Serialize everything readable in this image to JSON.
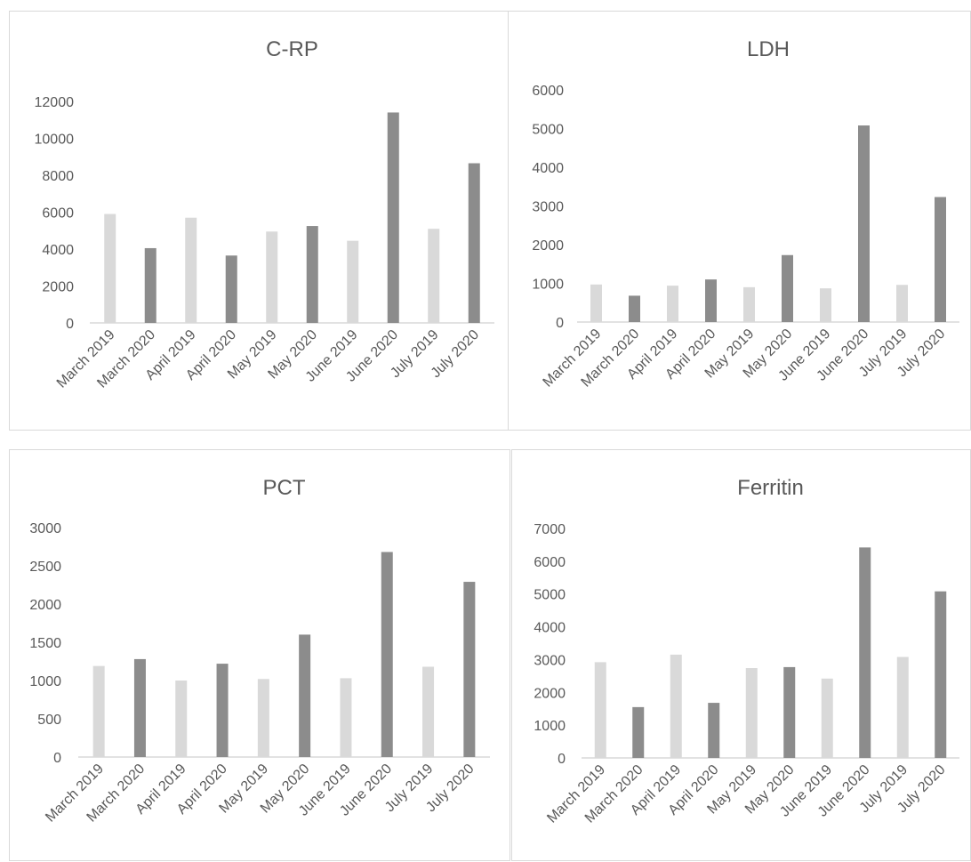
{
  "colors": {
    "y2019": "#d9d9d9",
    "y2020": "#8c8c8c",
    "axis": "#d9d9d9",
    "text": "#595959"
  },
  "chart_data": [
    {
      "type": "bar",
      "title": "C-RP",
      "categories": [
        "March 2019",
        "March 2020",
        "April 2019",
        "April 2020",
        "May 2019",
        "May 2020",
        "June 2019",
        "June 2020",
        "July 2019",
        "July 2020"
      ],
      "values": [
        5900,
        4050,
        5700,
        3650,
        4950,
        5250,
        4450,
        11400,
        5100,
        8650
      ],
      "ylim": [
        0,
        12000
      ],
      "yticks": [
        "0",
        "2000",
        "4000",
        "6000",
        "8000",
        "10000",
        "12000"
      ],
      "grid": false,
      "legend": "none"
    },
    {
      "type": "bar",
      "title": "LDH",
      "categories": [
        "March 2019",
        "March 2020",
        "April 2019",
        "April 2020",
        "May 2019",
        "May 2020",
        "June 2019",
        "June 2020",
        "July 2019",
        "July 2020"
      ],
      "values": [
        970,
        680,
        940,
        1100,
        900,
        1730,
        870,
        5080,
        960,
        3230
      ],
      "ylim": [
        0,
        6000
      ],
      "yticks": [
        "0",
        "1000",
        "2000",
        "3000",
        "4000",
        "5000",
        "6000"
      ],
      "grid": false,
      "legend": "none"
    },
    {
      "type": "bar",
      "title": "PCT",
      "categories": [
        "March 2019",
        "March 2020",
        "April 2019",
        "April 2020",
        "May 2019",
        "May 2020",
        "June 2019",
        "June 2020",
        "July 2019",
        "July 2020"
      ],
      "values": [
        1190,
        1280,
        1000,
        1220,
        1020,
        1600,
        1030,
        2680,
        1180,
        2290
      ],
      "ylim": [
        0,
        3000
      ],
      "yticks": [
        "0",
        "500",
        "1000",
        "1500",
        "2000",
        "2500",
        "3000"
      ],
      "grid": false,
      "legend": "none"
    },
    {
      "type": "bar",
      "title": "Ferritin",
      "categories": [
        "March 2019",
        "March 2020",
        "April 2019",
        "April 2020",
        "May 2019",
        "May 2020",
        "June 2019",
        "June 2020",
        "July 2019",
        "July 2020"
      ],
      "values": [
        2920,
        1550,
        3150,
        1680,
        2740,
        2770,
        2420,
        6420,
        3080,
        5080
      ],
      "ylim": [
        0,
        7000
      ],
      "yticks": [
        "0",
        "1000",
        "2000",
        "3000",
        "4000",
        "5000",
        "6000",
        "7000"
      ],
      "grid": false,
      "legend": "none"
    }
  ]
}
